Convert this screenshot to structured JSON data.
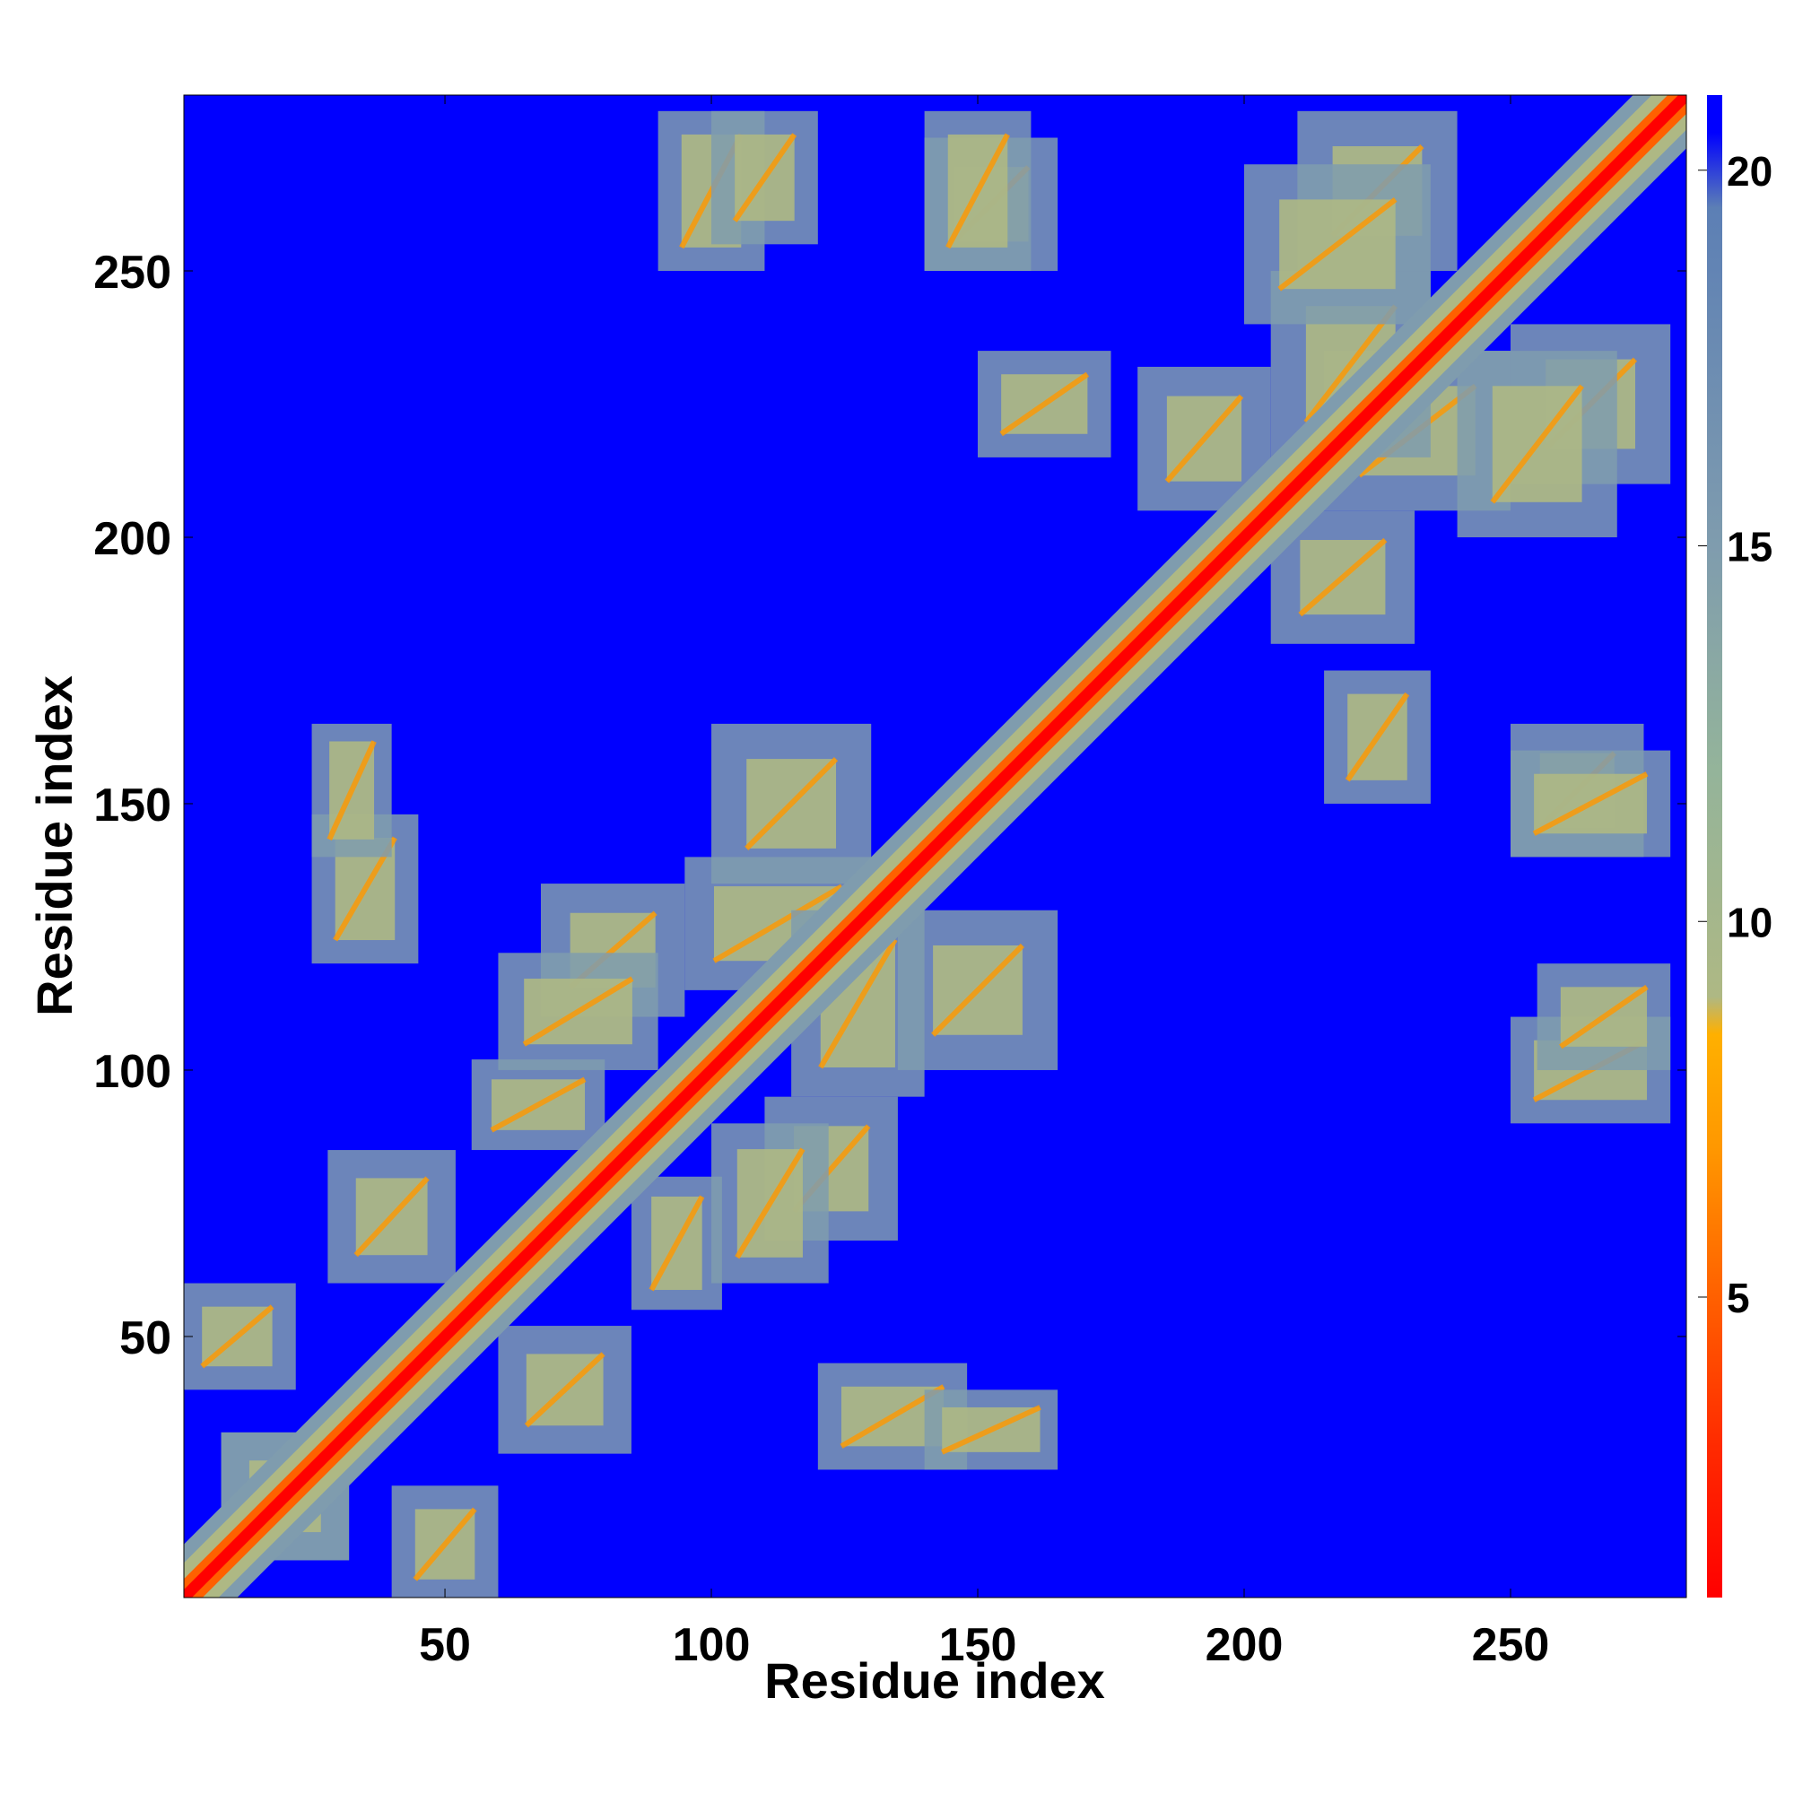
{
  "chart_data": {
    "type": "heatmap",
    "title": "",
    "xlabel": "Residue index",
    "ylabel": "Residue index",
    "x_range": [
      1,
      283
    ],
    "y_range": [
      1,
      283
    ],
    "x_ticks": [
      50,
      100,
      150,
      200,
      250
    ],
    "y_ticks": [
      50,
      100,
      150,
      200,
      250
    ],
    "colorbar": {
      "range": [
        1,
        21
      ],
      "ticks": [
        5,
        10,
        15,
        20
      ],
      "stops": [
        {
          "value": 1,
          "color": "#ff0000"
        },
        {
          "value": 3,
          "color": "#ff2a00"
        },
        {
          "value": 5,
          "color": "#ff6000"
        },
        {
          "value": 7,
          "color": "#ff9800"
        },
        {
          "value": 8.5,
          "color": "#ffb000"
        },
        {
          "value": 9,
          "color": "#aeb884"
        },
        {
          "value": 12,
          "color": "#94b49a"
        },
        {
          "value": 15,
          "color": "#7f9cae"
        },
        {
          "value": 19.5,
          "color": "#5c7fb5"
        },
        {
          "value": 20.5,
          "color": "#0000ff"
        },
        {
          "value": 21,
          "color": "#0000ff"
        }
      ]
    },
    "cell_values": "pairwise residue distance (Å), symmetric matrix, values above 20.5 shown as saturated blue",
    "features": {
      "diagonal_band": {
        "width": 4
      },
      "bands": [
        {
          "i": [
            8,
            32
          ],
          "j": [
            8,
            32
          ]
        },
        {
          "i": [
            40,
            60
          ],
          "j": [
            0,
            22
          ]
        },
        {
          "i": [
            28,
            52
          ],
          "j": [
            60,
            85
          ]
        },
        {
          "i": [
            55,
            80
          ],
          "j": [
            85,
            102
          ]
        },
        {
          "i": [
            68,
            95
          ],
          "j": [
            110,
            135
          ]
        },
        {
          "i": [
            95,
            130
          ],
          "j": [
            115,
            140
          ]
        },
        {
          "i": [
            100,
            122
          ],
          "j": [
            60,
            90
          ]
        },
        {
          "i": [
            120,
            148
          ],
          "j": [
            25,
            45
          ]
        },
        {
          "i": [
            135,
            165
          ],
          "j": [
            100,
            130
          ]
        },
        {
          "i": [
            25,
            40
          ],
          "j": [
            140,
            165
          ]
        },
        {
          "i": [
            90,
            110
          ],
          "j": [
            250,
            280
          ]
        },
        {
          "i": [
            140,
            165
          ],
          "j": [
            250,
            275
          ]
        },
        {
          "i": [
            150,
            175
          ],
          "j": [
            215,
            235
          ]
        },
        {
          "i": [
            205,
            232
          ],
          "j": [
            180,
            205
          ]
        },
        {
          "i": [
            215,
            250
          ],
          "j": [
            205,
            235
          ]
        },
        {
          "i": [
            210,
            240
          ],
          "j": [
            250,
            280
          ]
        },
        {
          "i": [
            240,
            270
          ],
          "j": [
            200,
            235
          ]
        },
        {
          "i": [
            250,
            280
          ],
          "j": [
            140,
            160
          ]
        },
        {
          "i": [
            255,
            280
          ],
          "j": [
            100,
            120
          ]
        }
      ]
    }
  }
}
